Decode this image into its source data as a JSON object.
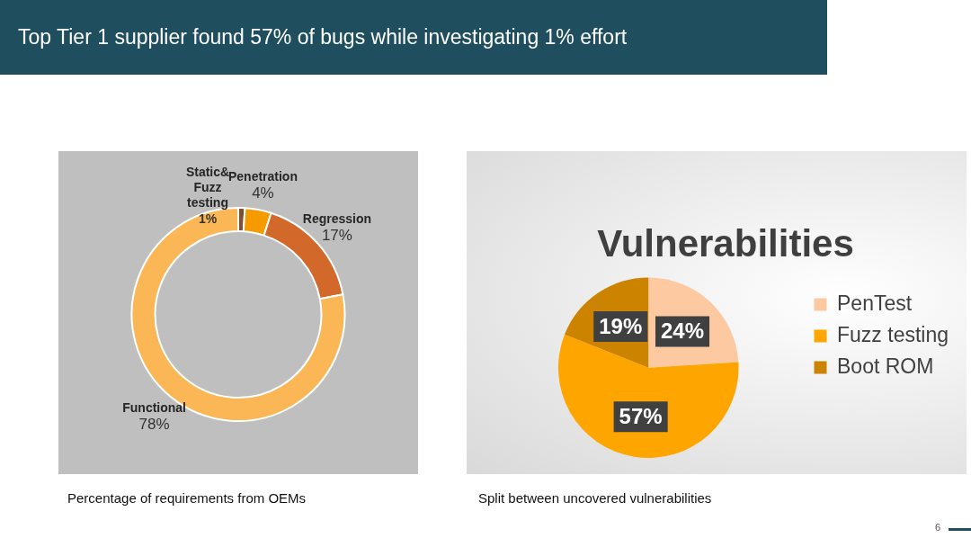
{
  "chart_data": [
    {
      "type": "donut",
      "title": "Top Tier 1 supplier found 57% of bugs while investigating 1% effort",
      "categories": [
        "Static& Fuzz testing",
        "Penetration",
        "Regression",
        "Functional"
      ],
      "values": [
        1,
        4,
        17,
        78
      ],
      "value_labels": [
        "1%",
        "4%",
        "17%",
        "78%"
      ],
      "colors": [
        "#7a5230",
        "#f59b00",
        "#d2692a",
        "#fbb755"
      ],
      "legend": false,
      "annotations": [
        "Percentage of requirements from OEMs"
      ]
    },
    {
      "type": "pie",
      "title": "Vulnerabilities",
      "categories": [
        "PenTest",
        "Fuzz testing",
        "Boot ROM"
      ],
      "values": [
        24,
        57,
        19
      ],
      "value_labels": [
        "24%",
        "57%",
        "19%"
      ],
      "colors": [
        "#fdc9a0",
        "#ffa500",
        "#cc8400"
      ],
      "legend": "right",
      "annotations": [
        "Split between uncovered vulnerabilities",
        "6"
      ]
    }
  ]
}
